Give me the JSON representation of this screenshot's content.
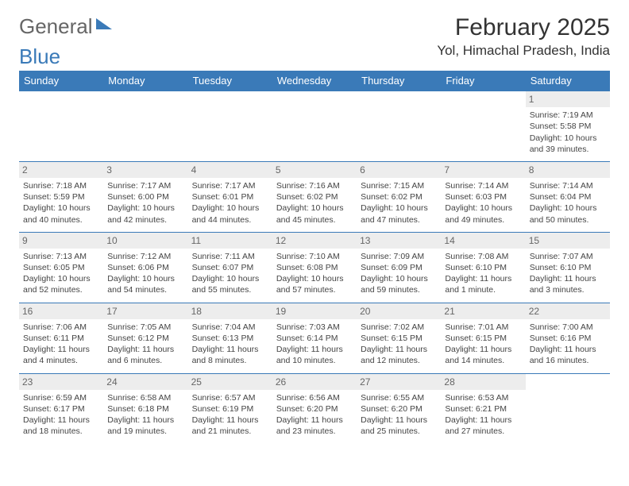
{
  "logo": {
    "text1": "General",
    "text2": "Blue"
  },
  "header": {
    "month_title": "February 2025",
    "location": "Yol, Himachal Pradesh, India"
  },
  "colors": {
    "header_bg": "#3a7ab8",
    "header_text": "#ffffff",
    "daynum_bg": "#ededed",
    "cell_border": "#3a7ab8",
    "body_text": "#444"
  },
  "calendar": {
    "day_headers": [
      "Sunday",
      "Monday",
      "Tuesday",
      "Wednesday",
      "Thursday",
      "Friday",
      "Saturday"
    ],
    "weeks": [
      [
        null,
        null,
        null,
        null,
        null,
        null,
        {
          "n": "1",
          "sunrise": "Sunrise: 7:19 AM",
          "sunset": "Sunset: 5:58 PM",
          "day1": "Daylight: 10 hours",
          "day2": "and 39 minutes."
        }
      ],
      [
        {
          "n": "2",
          "sunrise": "Sunrise: 7:18 AM",
          "sunset": "Sunset: 5:59 PM",
          "day1": "Daylight: 10 hours",
          "day2": "and 40 minutes."
        },
        {
          "n": "3",
          "sunrise": "Sunrise: 7:17 AM",
          "sunset": "Sunset: 6:00 PM",
          "day1": "Daylight: 10 hours",
          "day2": "and 42 minutes."
        },
        {
          "n": "4",
          "sunrise": "Sunrise: 7:17 AM",
          "sunset": "Sunset: 6:01 PM",
          "day1": "Daylight: 10 hours",
          "day2": "and 44 minutes."
        },
        {
          "n": "5",
          "sunrise": "Sunrise: 7:16 AM",
          "sunset": "Sunset: 6:02 PM",
          "day1": "Daylight: 10 hours",
          "day2": "and 45 minutes."
        },
        {
          "n": "6",
          "sunrise": "Sunrise: 7:15 AM",
          "sunset": "Sunset: 6:02 PM",
          "day1": "Daylight: 10 hours",
          "day2": "and 47 minutes."
        },
        {
          "n": "7",
          "sunrise": "Sunrise: 7:14 AM",
          "sunset": "Sunset: 6:03 PM",
          "day1": "Daylight: 10 hours",
          "day2": "and 49 minutes."
        },
        {
          "n": "8",
          "sunrise": "Sunrise: 7:14 AM",
          "sunset": "Sunset: 6:04 PM",
          "day1": "Daylight: 10 hours",
          "day2": "and 50 minutes."
        }
      ],
      [
        {
          "n": "9",
          "sunrise": "Sunrise: 7:13 AM",
          "sunset": "Sunset: 6:05 PM",
          "day1": "Daylight: 10 hours",
          "day2": "and 52 minutes."
        },
        {
          "n": "10",
          "sunrise": "Sunrise: 7:12 AM",
          "sunset": "Sunset: 6:06 PM",
          "day1": "Daylight: 10 hours",
          "day2": "and 54 minutes."
        },
        {
          "n": "11",
          "sunrise": "Sunrise: 7:11 AM",
          "sunset": "Sunset: 6:07 PM",
          "day1": "Daylight: 10 hours",
          "day2": "and 55 minutes."
        },
        {
          "n": "12",
          "sunrise": "Sunrise: 7:10 AM",
          "sunset": "Sunset: 6:08 PM",
          "day1": "Daylight: 10 hours",
          "day2": "and 57 minutes."
        },
        {
          "n": "13",
          "sunrise": "Sunrise: 7:09 AM",
          "sunset": "Sunset: 6:09 PM",
          "day1": "Daylight: 10 hours",
          "day2": "and 59 minutes."
        },
        {
          "n": "14",
          "sunrise": "Sunrise: 7:08 AM",
          "sunset": "Sunset: 6:10 PM",
          "day1": "Daylight: 11 hours",
          "day2": "and 1 minute."
        },
        {
          "n": "15",
          "sunrise": "Sunrise: 7:07 AM",
          "sunset": "Sunset: 6:10 PM",
          "day1": "Daylight: 11 hours",
          "day2": "and 3 minutes."
        }
      ],
      [
        {
          "n": "16",
          "sunrise": "Sunrise: 7:06 AM",
          "sunset": "Sunset: 6:11 PM",
          "day1": "Daylight: 11 hours",
          "day2": "and 4 minutes."
        },
        {
          "n": "17",
          "sunrise": "Sunrise: 7:05 AM",
          "sunset": "Sunset: 6:12 PM",
          "day1": "Daylight: 11 hours",
          "day2": "and 6 minutes."
        },
        {
          "n": "18",
          "sunrise": "Sunrise: 7:04 AM",
          "sunset": "Sunset: 6:13 PM",
          "day1": "Daylight: 11 hours",
          "day2": "and 8 minutes."
        },
        {
          "n": "19",
          "sunrise": "Sunrise: 7:03 AM",
          "sunset": "Sunset: 6:14 PM",
          "day1": "Daylight: 11 hours",
          "day2": "and 10 minutes."
        },
        {
          "n": "20",
          "sunrise": "Sunrise: 7:02 AM",
          "sunset": "Sunset: 6:15 PM",
          "day1": "Daylight: 11 hours",
          "day2": "and 12 minutes."
        },
        {
          "n": "21",
          "sunrise": "Sunrise: 7:01 AM",
          "sunset": "Sunset: 6:15 PM",
          "day1": "Daylight: 11 hours",
          "day2": "and 14 minutes."
        },
        {
          "n": "22",
          "sunrise": "Sunrise: 7:00 AM",
          "sunset": "Sunset: 6:16 PM",
          "day1": "Daylight: 11 hours",
          "day2": "and 16 minutes."
        }
      ],
      [
        {
          "n": "23",
          "sunrise": "Sunrise: 6:59 AM",
          "sunset": "Sunset: 6:17 PM",
          "day1": "Daylight: 11 hours",
          "day2": "and 18 minutes."
        },
        {
          "n": "24",
          "sunrise": "Sunrise: 6:58 AM",
          "sunset": "Sunset: 6:18 PM",
          "day1": "Daylight: 11 hours",
          "day2": "and 19 minutes."
        },
        {
          "n": "25",
          "sunrise": "Sunrise: 6:57 AM",
          "sunset": "Sunset: 6:19 PM",
          "day1": "Daylight: 11 hours",
          "day2": "and 21 minutes."
        },
        {
          "n": "26",
          "sunrise": "Sunrise: 6:56 AM",
          "sunset": "Sunset: 6:20 PM",
          "day1": "Daylight: 11 hours",
          "day2": "and 23 minutes."
        },
        {
          "n": "27",
          "sunrise": "Sunrise: 6:55 AM",
          "sunset": "Sunset: 6:20 PM",
          "day1": "Daylight: 11 hours",
          "day2": "and 25 minutes."
        },
        {
          "n": "28",
          "sunrise": "Sunrise: 6:53 AM",
          "sunset": "Sunset: 6:21 PM",
          "day1": "Daylight: 11 hours",
          "day2": "and 27 minutes."
        },
        null
      ]
    ]
  }
}
